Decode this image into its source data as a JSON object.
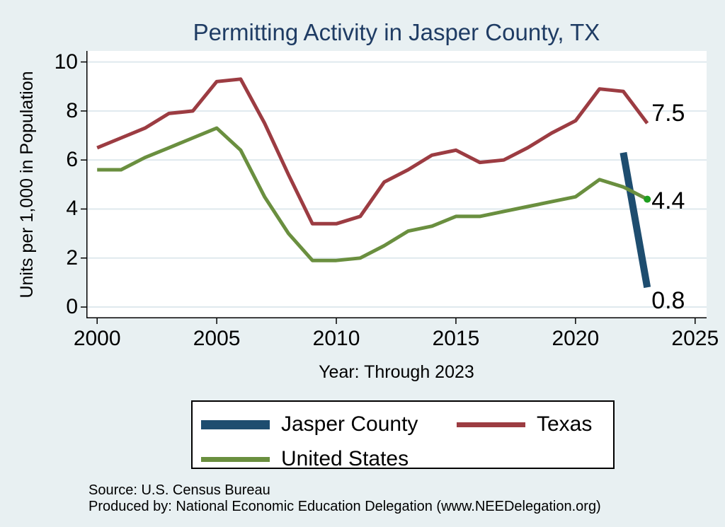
{
  "title": "Permitting Activity in Jasper County, TX",
  "chart_data": {
    "type": "line",
    "title": "Permitting Activity in Jasper County, TX",
    "xlabel": "Year: Through 2023",
    "ylabel": "Units per 1,000 in Population",
    "xlim": [
      1999.55,
      2025.48
    ],
    "ylim": [
      -0.46,
      10.45
    ],
    "x_ticks": [
      2000,
      2005,
      2010,
      2015,
      2020,
      2025
    ],
    "y_ticks": [
      0,
      2,
      4,
      6,
      8,
      10
    ],
    "grid": "horizontal",
    "legend_position": "bottom",
    "series": [
      {
        "name": "Texas",
        "color": "#9c3c42",
        "stroke_width": 5,
        "x": [
          2000,
          2001,
          2002,
          2003,
          2004,
          2005,
          2006,
          2007,
          2008,
          2009,
          2010,
          2011,
          2012,
          2013,
          2014,
          2015,
          2016,
          2017,
          2018,
          2019,
          2020,
          2021,
          2022,
          2023
        ],
        "values": [
          6.5,
          6.9,
          7.3,
          7.9,
          8.0,
          9.2,
          9.3,
          7.5,
          5.4,
          3.4,
          3.4,
          3.7,
          5.1,
          5.6,
          6.2,
          6.4,
          5.9,
          6.0,
          6.5,
          7.1,
          7.6,
          8.9,
          8.8,
          7.5
        ]
      },
      {
        "name": "Jasper County",
        "color": "#1e4d6f",
        "stroke_width": 10,
        "x": [
          2022,
          2023
        ],
        "values": [
          6.3,
          0.8
        ]
      },
      {
        "name": "United States",
        "color": "#6a8f3f",
        "stroke_width": 5,
        "x": [
          2000,
          2001,
          2002,
          2003,
          2004,
          2005,
          2006,
          2007,
          2008,
          2009,
          2010,
          2011,
          2012,
          2013,
          2014,
          2015,
          2016,
          2017,
          2018,
          2019,
          2020,
          2021,
          2022,
          2023
        ],
        "values": [
          5.6,
          5.6,
          6.1,
          6.5,
          6.9,
          7.3,
          6.4,
          4.5,
          3.0,
          1.9,
          1.9,
          2.0,
          2.5,
          3.1,
          3.3,
          3.7,
          3.7,
          3.9,
          4.1,
          4.3,
          4.5,
          5.2,
          4.9,
          4.4
        ],
        "end_marker": {
          "color": "#1f9e1f",
          "radius": 5
        }
      }
    ],
    "end_labels": [
      {
        "text": "7.5",
        "at_value": 7.5,
        "dy": -14
      },
      {
        "text": "4.4",
        "at_value": 4.4,
        "dy": 2
      },
      {
        "text": "0.8",
        "at_value": 0.8,
        "dy": 19
      }
    ]
  },
  "legend": {
    "items": [
      {
        "label": "Jasper County",
        "color": "#1e4d6f",
        "swatch_height": 13
      },
      {
        "label": "Texas",
        "color": "#9c3c42",
        "swatch_height": 7
      },
      {
        "label": "United States",
        "color": "#6a8f3f",
        "swatch_height": 7
      }
    ]
  },
  "footer": {
    "source": "Source: U.S. Census Bureau",
    "produced_by": "Produced by: National Economic Education Delegation (www.NEEDelegation.org)"
  },
  "colors": {
    "background": "#e8f0f2",
    "plot_bg": "#ffffff",
    "grid": "#dfe9ee",
    "axis": "#000000",
    "title": "#1f3c64"
  }
}
